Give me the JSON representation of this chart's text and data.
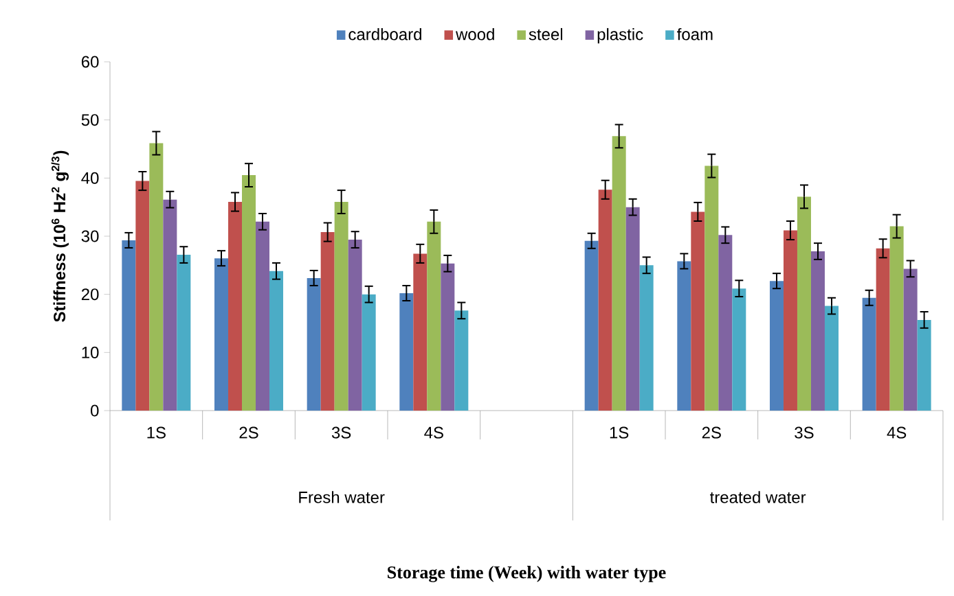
{
  "chart_data": {
    "type": "bar",
    "ylabel": "Stiffness (10$^{6}$ Hz$^{2}$ g$^{2/3}$)",
    "categories": [
      "1S",
      "2S",
      "3S",
      "4S",
      null,
      "1S",
      "2S",
      "3S",
      "4S"
    ],
    "annotations": [
      "Fresh water",
      "treated water",
      "Storage time (Week) with water type"
    ],
    "series": [
      {
        "name": "cardboard",
        "color": "#4f81bd",
        "values": [
          29.3,
          26.2,
          22.8,
          20.2,
          null,
          29.2,
          25.7,
          22.3,
          19.4
        ],
        "errors": [
          1.3,
          1.3,
          1.3,
          1.3,
          null,
          1.3,
          1.3,
          1.3,
          1.3
        ]
      },
      {
        "name": "wood",
        "color": "#c0504d",
        "values": [
          39.5,
          35.9,
          30.7,
          27.0,
          null,
          38.0,
          34.2,
          31.0,
          27.9
        ],
        "errors": [
          1.6,
          1.6,
          1.6,
          1.6,
          null,
          1.6,
          1.6,
          1.6,
          1.6
        ]
      },
      {
        "name": "steel",
        "color": "#9bbb59",
        "values": [
          46.0,
          40.5,
          35.9,
          32.5,
          null,
          47.2,
          42.1,
          36.8,
          31.7
        ],
        "errors": [
          2.0,
          2.0,
          2.0,
          2.0,
          null,
          2.0,
          2.0,
          2.0,
          2.0
        ]
      },
      {
        "name": "plastic",
        "color": "#8064a2",
        "values": [
          36.3,
          32.5,
          29.4,
          25.3,
          null,
          35.0,
          30.2,
          27.4,
          24.4
        ],
        "errors": [
          1.4,
          1.4,
          1.4,
          1.4,
          null,
          1.4,
          1.4,
          1.4,
          1.4
        ]
      },
      {
        "name": "foam",
        "color": "#4bacc6",
        "values": [
          26.8,
          24.0,
          20.0,
          17.2,
          null,
          25.0,
          21.0,
          18.0,
          15.6
        ],
        "errors": [
          1.4,
          1.4,
          1.4,
          1.4,
          null,
          1.4,
          1.4,
          1.4,
          1.4
        ]
      }
    ],
    "ylim": [
      0,
      60
    ],
    "yticks": [
      0,
      10,
      20,
      30,
      40,
      50,
      60
    ],
    "legend": "top",
    "grid": false,
    "marker": "none"
  }
}
